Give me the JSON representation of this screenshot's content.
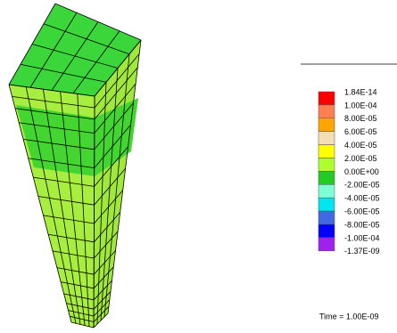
{
  "legend": {
    "entries": [
      {
        "label": "1.84E-14",
        "color": "#ff0000"
      },
      {
        "label": "1.00E-04",
        "color": "#ff7f50"
      },
      {
        "label": "8.00E-05",
        "color": "#ffa500"
      },
      {
        "label": "6.00E-05",
        "color": "#f5deb3"
      },
      {
        "label": "4.00E-05",
        "color": "#ffff00"
      },
      {
        "label": "2.00E-05",
        "color": "#adff2f"
      },
      {
        "label": "0.00E+00",
        "color": "#22cc22"
      },
      {
        "label": "-2.00E-05",
        "color": "#7fffd4"
      },
      {
        "label": "-4.00E-05",
        "color": "#00e5ee"
      },
      {
        "label": "-6.00E-05",
        "color": "#4169e1"
      },
      {
        "label": "-8.00E-05",
        "color": "#0000ff"
      },
      {
        "label": "-1.00E-04",
        "color": "#a020f0"
      },
      {
        "label": "-1.37E-09",
        "color": null
      }
    ]
  },
  "time_label": "Time = 1.00E-09"
}
